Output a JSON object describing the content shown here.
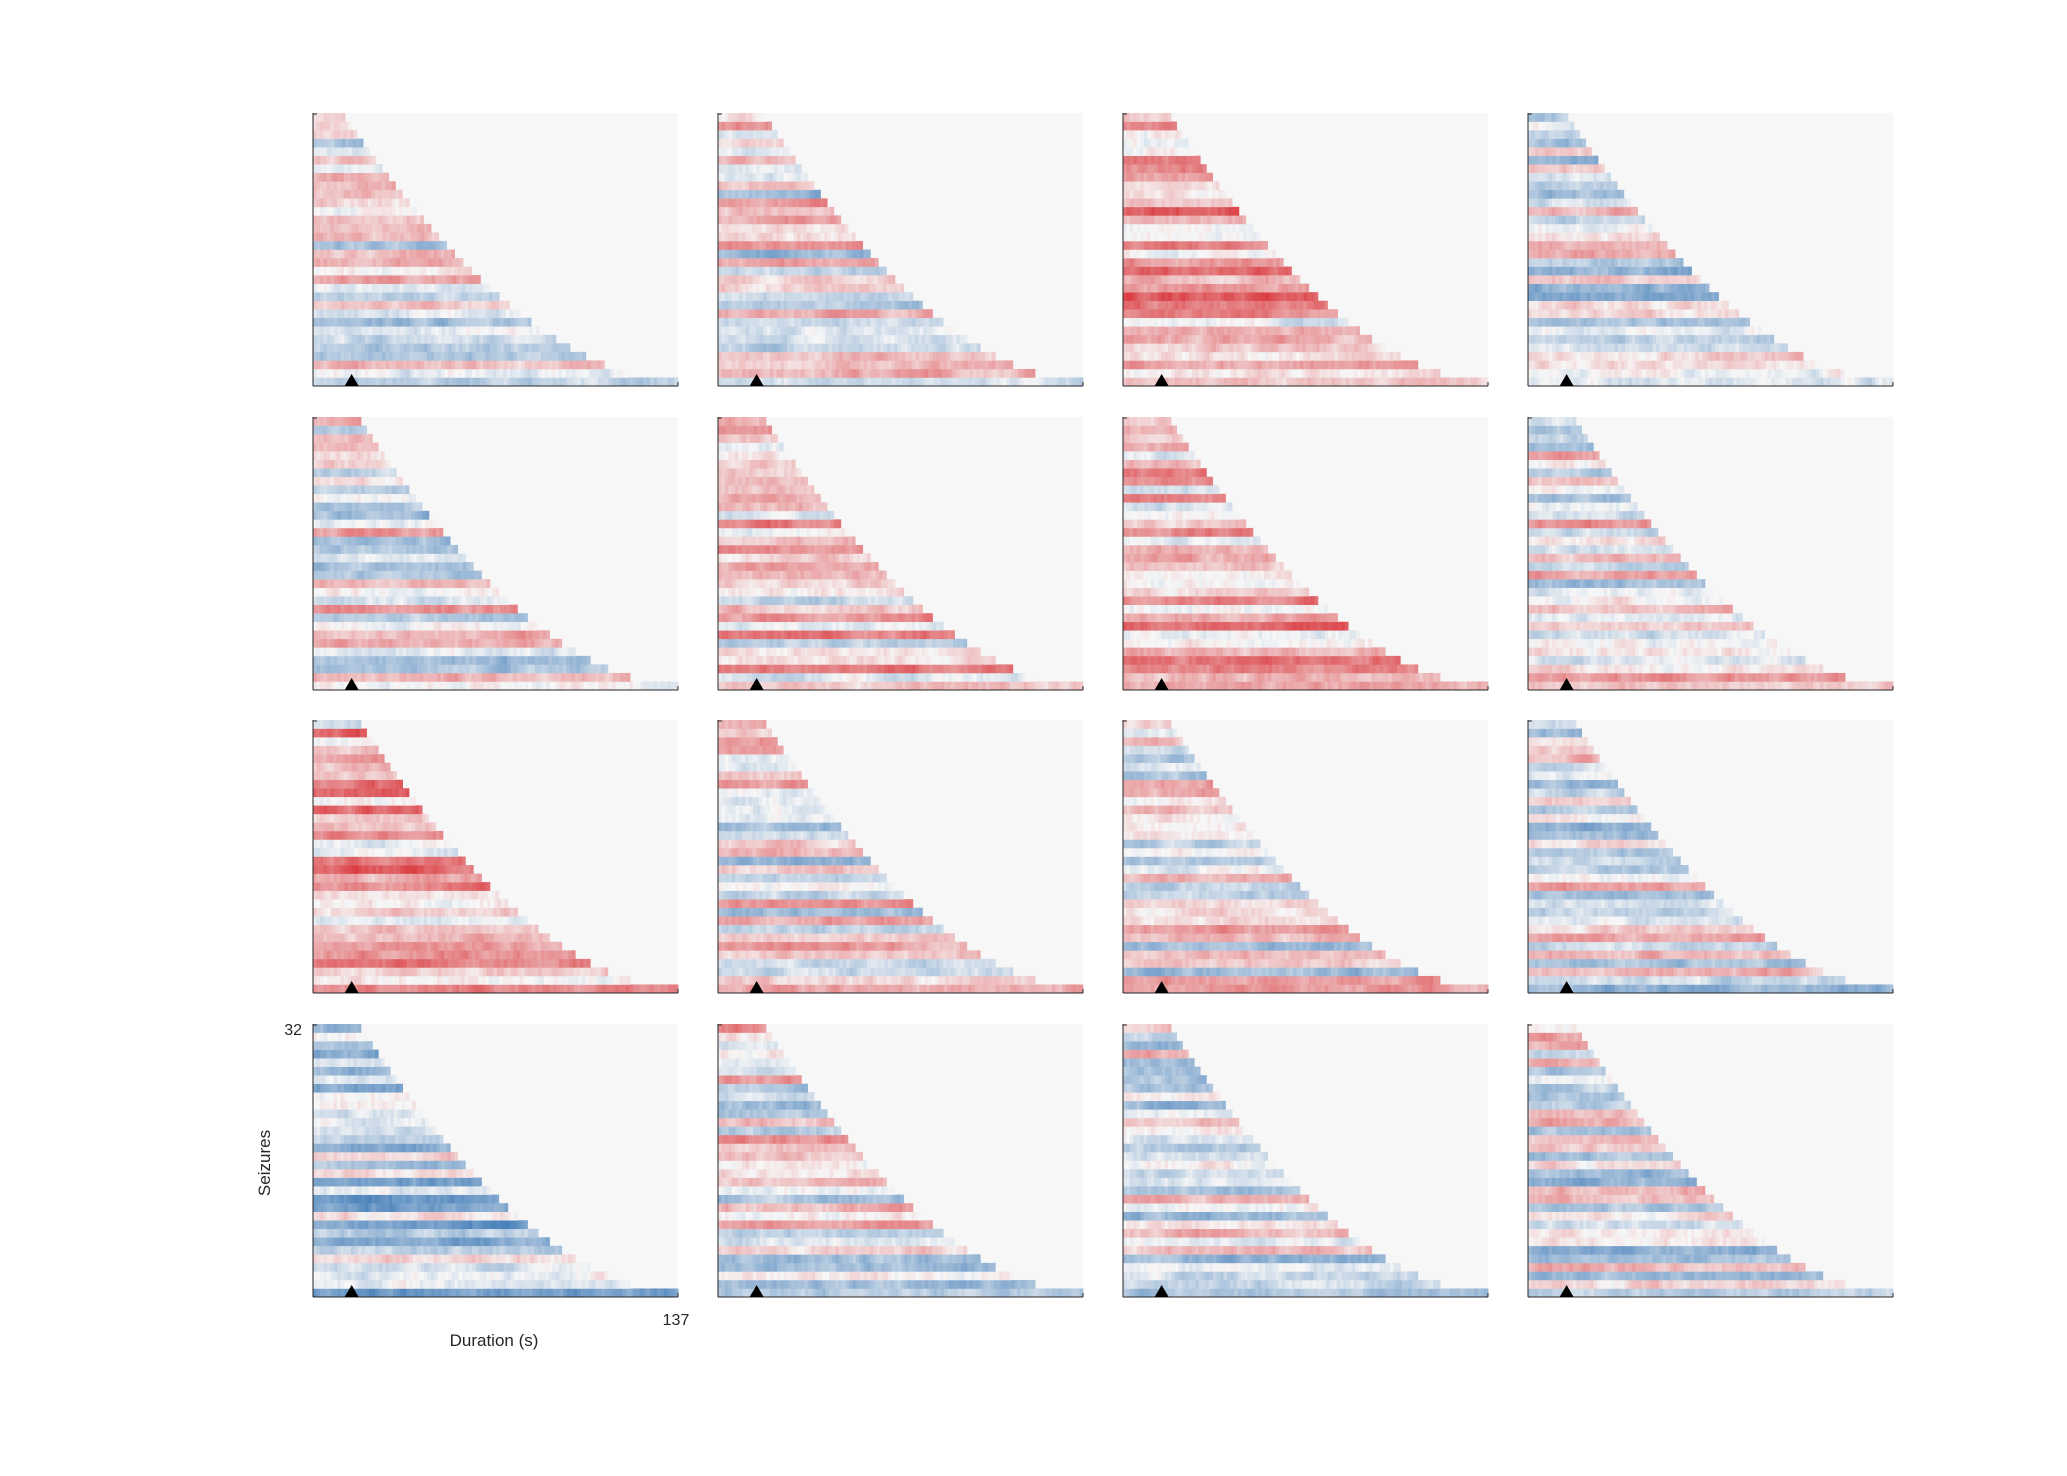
{
  "figure": {
    "xlabel": "Duration (s)",
    "ylabel": "Seizures",
    "x_max_label": "137",
    "y_max_label": "32"
  },
  "chart_data": {
    "type": "heatmap",
    "layout": "4x4 grid of panels",
    "xlim": [
      0,
      137
    ],
    "ylim": [
      1,
      32
    ],
    "rows_per_panel": 32,
    "onset_marker": "triangle",
    "colormap": {
      "negative": "#2166ac",
      "neutral": "#f7f7f7",
      "positive": "#d6262b"
    },
    "panels": [
      {
        "index": 0,
        "shift": 10,
        "longest": 137,
        "shortest": 12,
        "bias": 0.0
      },
      {
        "index": 1,
        "shift": 10,
        "longest": 137,
        "shortest": 18,
        "bias": 0.05
      },
      {
        "index": 2,
        "shift": 10,
        "longest": 137,
        "shortest": 18,
        "bias": 0.55
      },
      {
        "index": 3,
        "shift": 10,
        "longest": 137,
        "shortest": 15,
        "bias": -0.1
      },
      {
        "index": 4,
        "shift": 10,
        "longest": 137,
        "shortest": 18,
        "bias": 0.0
      },
      {
        "index": 5,
        "shift": 10,
        "longest": 137,
        "shortest": 18,
        "bias": 0.2
      },
      {
        "index": 6,
        "shift": 10,
        "longest": 137,
        "shortest": 18,
        "bias": 0.35
      },
      {
        "index": 7,
        "shift": 10,
        "longest": 137,
        "shortest": 18,
        "bias": 0.0
      },
      {
        "index": 8,
        "shift": 10,
        "longest": 137,
        "shortest": 18,
        "bias": 0.4
      },
      {
        "index": 9,
        "shift": 10,
        "longest": 137,
        "shortest": 18,
        "bias": 0.05
      },
      {
        "index": 10,
        "shift": 10,
        "longest": 137,
        "shortest": 18,
        "bias": 0.0
      },
      {
        "index": 11,
        "shift": 10,
        "longest": 137,
        "shortest": 18,
        "bias": -0.05
      },
      {
        "index": 12,
        "shift": 10,
        "longest": 137,
        "shortest": 18,
        "bias": -0.35
      },
      {
        "index": 13,
        "shift": 10,
        "longest": 137,
        "shortest": 18,
        "bias": 0.05
      },
      {
        "index": 14,
        "shift": 10,
        "longest": 137,
        "shortest": 18,
        "bias": -0.1
      },
      {
        "index": 15,
        "shift": 10,
        "longest": 137,
        "shortest": 18,
        "bias": -0.1
      }
    ]
  }
}
